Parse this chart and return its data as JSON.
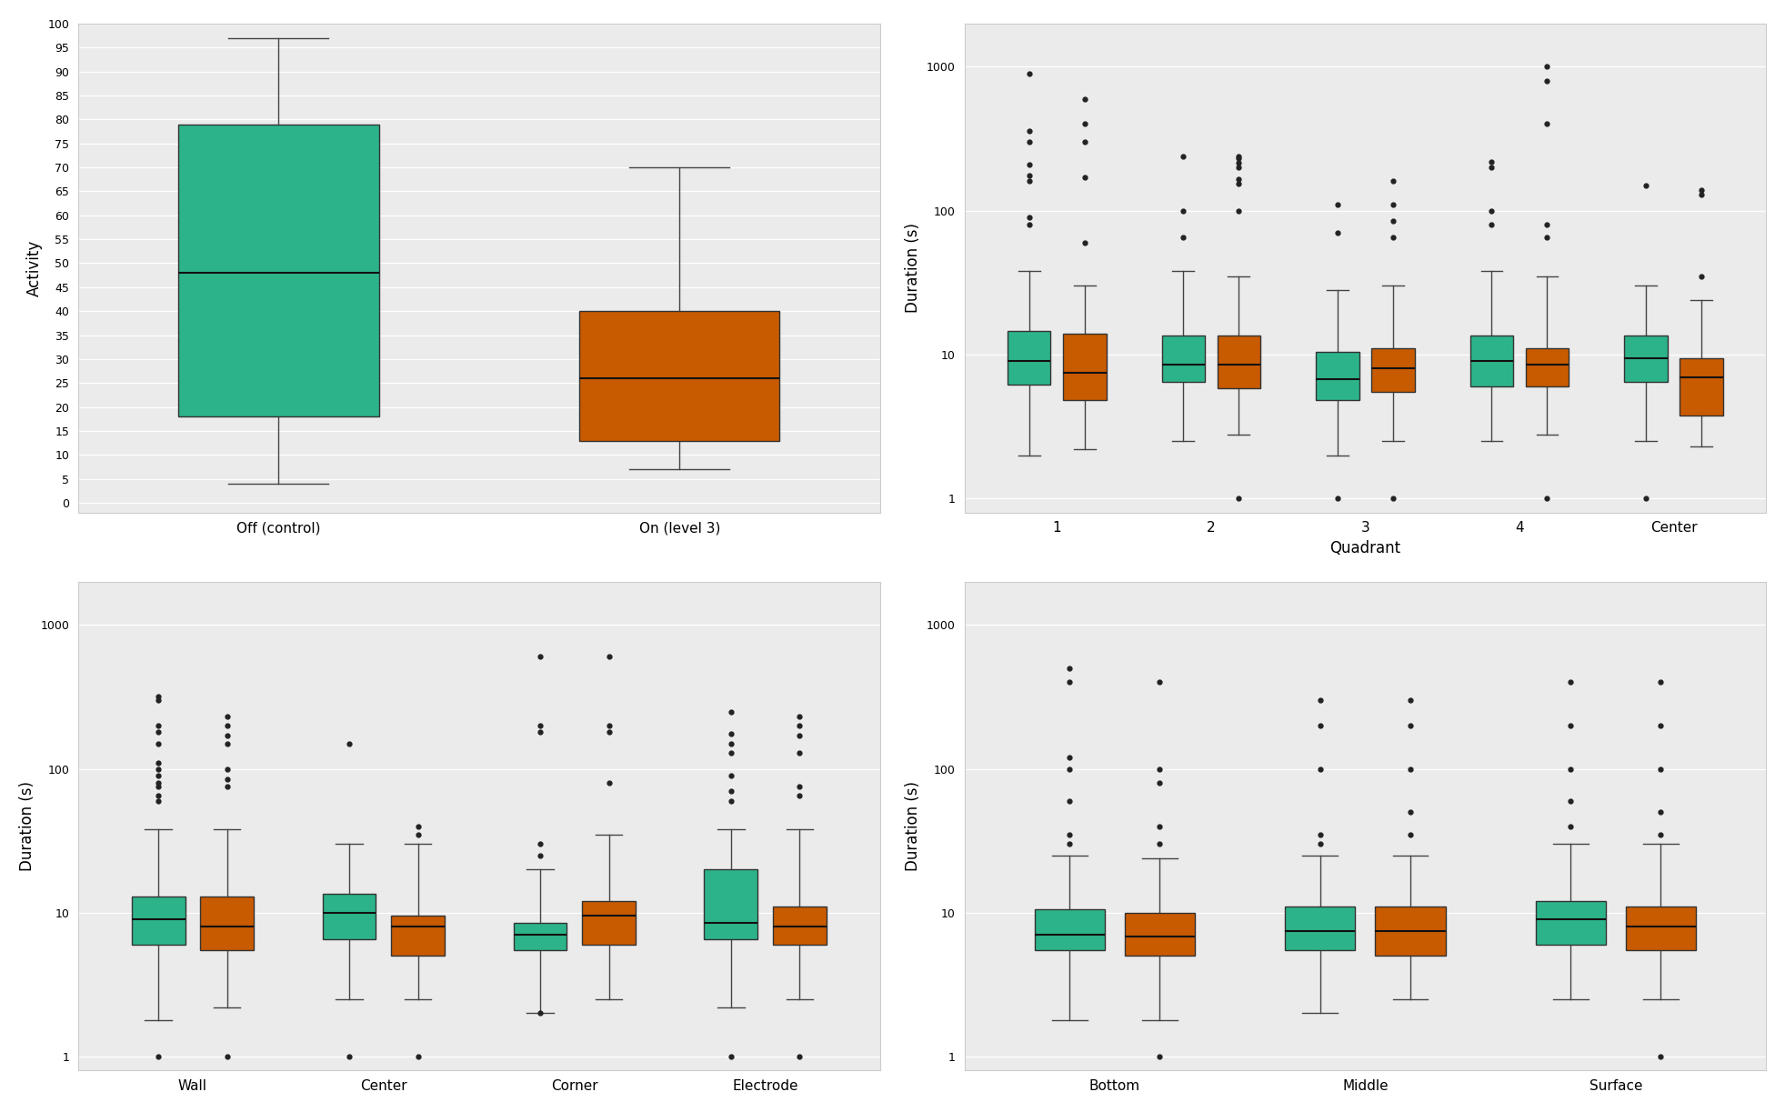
{
  "colors": {
    "green": "#2db38a",
    "orange": "#c85a00",
    "bg": "#ebebeb",
    "grid": "#ffffff"
  },
  "plot1": {
    "ylabel": "Activity",
    "categories": [
      "Off (control)",
      "On (level 3)"
    ],
    "green_box": {
      "q1": 18,
      "med": 48,
      "q3": 79,
      "whislo": 4,
      "whishi": 97,
      "fliers": []
    },
    "orange_box": {
      "q1": 13,
      "med": 26,
      "q3": 40,
      "whislo": 7,
      "whishi": 70,
      "fliers": []
    },
    "ylim": [
      -2,
      100
    ],
    "yticks": [
      0,
      5,
      10,
      15,
      20,
      25,
      30,
      35,
      40,
      45,
      50,
      55,
      60,
      65,
      70,
      75,
      80,
      85,
      90,
      95,
      100
    ]
  },
  "plot2": {
    "ylabel": "Duration (s)",
    "xlabel": "Quadrant",
    "categories": [
      "1",
      "2",
      "3",
      "4",
      "Center"
    ],
    "green_boxes": [
      {
        "q1": 6.2,
        "med": 9.0,
        "q3": 14.5,
        "whislo": 2.0,
        "whishi": 38,
        "fliers": [
          80,
          90,
          160,
          175,
          210,
          300,
          360,
          900
        ]
      },
      {
        "q1": 6.5,
        "med": 8.5,
        "q3": 13.5,
        "whislo": 2.5,
        "whishi": 38,
        "fliers": [
          65,
          100,
          240
        ]
      },
      {
        "q1": 4.8,
        "med": 6.8,
        "q3": 10.5,
        "whislo": 2.0,
        "whishi": 28,
        "fliers": [
          70,
          110,
          1.0
        ]
      },
      {
        "q1": 6.0,
        "med": 9.0,
        "q3": 13.5,
        "whislo": 2.5,
        "whishi": 38,
        "fliers": [
          80,
          100,
          200,
          220
        ]
      },
      {
        "q1": 6.5,
        "med": 9.5,
        "q3": 13.5,
        "whislo": 2.5,
        "whishi": 30,
        "fliers": [
          150,
          1.0
        ]
      }
    ],
    "orange_boxes": [
      {
        "q1": 4.8,
        "med": 7.5,
        "q3": 14.0,
        "whislo": 2.2,
        "whishi": 30,
        "fliers": [
          60,
          170,
          300,
          400,
          600
        ]
      },
      {
        "q1": 5.8,
        "med": 8.5,
        "q3": 13.5,
        "whislo": 2.8,
        "whishi": 35,
        "fliers": [
          100,
          155,
          165,
          200,
          215,
          230,
          240,
          1.0
        ]
      },
      {
        "q1": 5.5,
        "med": 8.0,
        "q3": 11.0,
        "whislo": 2.5,
        "whishi": 30,
        "fliers": [
          65,
          85,
          110,
          160,
          1.0
        ]
      },
      {
        "q1": 6.0,
        "med": 8.5,
        "q3": 11.0,
        "whislo": 2.8,
        "whishi": 35,
        "fliers": [
          65,
          80,
          400,
          800,
          1000,
          1.0
        ]
      },
      {
        "q1": 3.8,
        "med": 7.0,
        "q3": 9.5,
        "whislo": 2.3,
        "whishi": 24,
        "fliers": [
          35,
          130,
          140
        ]
      }
    ]
  },
  "plot3": {
    "ylabel": "Duration (s)",
    "xlabel": "",
    "categories": [
      "Wall",
      "Center",
      "Corner",
      "Electrode"
    ],
    "green_boxes": [
      {
        "q1": 6.0,
        "med": 9.0,
        "q3": 13.0,
        "whislo": 1.8,
        "whishi": 38,
        "fliers": [
          60,
          65,
          75,
          80,
          90,
          100,
          110,
          150,
          180,
          200,
          300,
          320,
          1.0
        ]
      },
      {
        "q1": 6.5,
        "med": 10.0,
        "q3": 13.5,
        "whislo": 2.5,
        "whishi": 30,
        "fliers": [
          150,
          1.0
        ]
      },
      {
        "q1": 5.5,
        "med": 7.0,
        "q3": 8.5,
        "whislo": 2.0,
        "whishi": 20,
        "fliers": [
          25,
          30,
          180,
          200,
          600,
          2.0
        ]
      },
      {
        "q1": 6.5,
        "med": 8.5,
        "q3": 20.0,
        "whislo": 2.2,
        "whishi": 38,
        "fliers": [
          60,
          70,
          90,
          130,
          150,
          175,
          250,
          1.0
        ]
      }
    ],
    "orange_boxes": [
      {
        "q1": 5.5,
        "med": 8.0,
        "q3": 13.0,
        "whislo": 2.2,
        "whishi": 38,
        "fliers": [
          75,
          85,
          100,
          150,
          170,
          200,
          230,
          1.0
        ]
      },
      {
        "q1": 5.0,
        "med": 8.0,
        "q3": 9.5,
        "whislo": 2.5,
        "whishi": 30,
        "fliers": [
          35,
          40,
          1.0
        ]
      },
      {
        "q1": 6.0,
        "med": 9.5,
        "q3": 12.0,
        "whislo": 2.5,
        "whishi": 35,
        "fliers": [
          80,
          180,
          200,
          600
        ]
      },
      {
        "q1": 6.0,
        "med": 8.0,
        "q3": 11.0,
        "whislo": 2.5,
        "whishi": 38,
        "fliers": [
          65,
          75,
          130,
          170,
          200,
          230,
          1.0
        ]
      }
    ]
  },
  "plot4": {
    "ylabel": "Duration (s)",
    "xlabel": "",
    "categories": [
      "Bottom",
      "Middle",
      "Surface"
    ],
    "green_boxes": [
      {
        "q1": 5.5,
        "med": 7.0,
        "q3": 10.5,
        "whislo": 1.8,
        "whishi": 25,
        "fliers": [
          30,
          35,
          60,
          100,
          120,
          400,
          500
        ]
      },
      {
        "q1": 5.5,
        "med": 7.5,
        "q3": 11.0,
        "whislo": 2.0,
        "whishi": 25,
        "fliers": [
          30,
          35,
          100,
          200,
          300
        ]
      },
      {
        "q1": 6.0,
        "med": 9.0,
        "q3": 12.0,
        "whislo": 2.5,
        "whishi": 30,
        "fliers": [
          40,
          60,
          100,
          200,
          400
        ]
      }
    ],
    "orange_boxes": [
      {
        "q1": 5.0,
        "med": 6.8,
        "q3": 10.0,
        "whislo": 1.8,
        "whishi": 24,
        "fliers": [
          30,
          40,
          80,
          100,
          400,
          1.0
        ]
      },
      {
        "q1": 5.0,
        "med": 7.5,
        "q3": 11.0,
        "whislo": 2.5,
        "whishi": 25,
        "fliers": [
          35,
          50,
          100,
          200,
          300
        ]
      },
      {
        "q1": 5.5,
        "med": 8.0,
        "q3": 11.0,
        "whislo": 2.5,
        "whishi": 30,
        "fliers": [
          35,
          50,
          100,
          200,
          400,
          1.0
        ]
      }
    ]
  }
}
